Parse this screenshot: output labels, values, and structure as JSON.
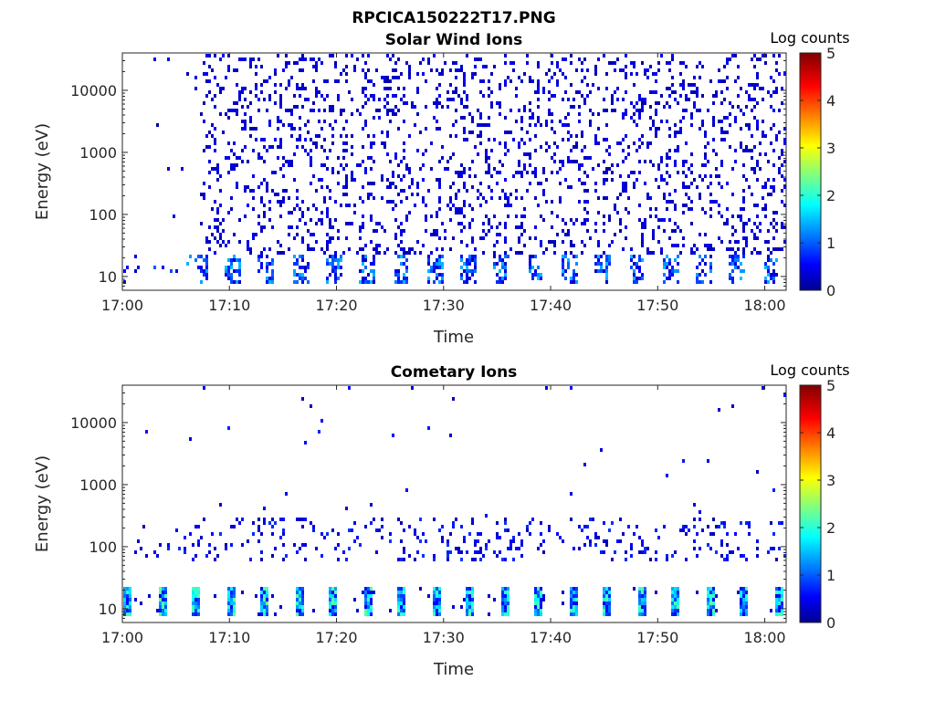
{
  "figure": {
    "title": "RPCICA150222T17.PNG"
  },
  "colors": {
    "axis": "#262626",
    "low": "#00008f",
    "high": "#800000"
  },
  "chart_data": [
    {
      "type": "heatmap",
      "title": "Solar Wind Ions",
      "xlabel": "Time",
      "ylabel": "Energy (eV)",
      "x_ticks": [
        "17:00",
        "17:10",
        "17:20",
        "17:30",
        "17:40",
        "17:50",
        "18:00"
      ],
      "y_ticks": [
        "10",
        "100",
        "1000",
        "10000"
      ],
      "y_scale": "log",
      "ylim": [
        6,
        40000
      ],
      "xlim_minutes": [
        0,
        62
      ],
      "colorbar": {
        "label": "Log counts",
        "ticks": [
          "0",
          "1",
          "2",
          "3",
          "4",
          "5"
        ],
        "range": [
          0,
          5
        ],
        "colormap": "jet"
      },
      "colorbar_colormap_stops": [
        "#00008f",
        "#0000ff",
        "#00ffff",
        "#ffff00",
        "#ff0000",
        "#800000"
      ],
      "description_levels": {
        "low_energy_band_eV": [
          8,
          25
        ],
        "low_energy_band_log_counts": [
          0.3,
          1.6
        ],
        "sparse_high_energy_log_counts": [
          0.2,
          0.6
        ],
        "activity_onset_minute": 7
      }
    },
    {
      "type": "heatmap",
      "title": "Cometary Ions",
      "xlabel": "Time",
      "ylabel": "Energy (eV)",
      "x_ticks": [
        "17:00",
        "17:10",
        "17:20",
        "17:30",
        "17:40",
        "17:50",
        "18:00"
      ],
      "y_ticks": [
        "10",
        "100",
        "1000",
        "10000"
      ],
      "y_scale": "log",
      "ylim": [
        6,
        40000
      ],
      "xlim_minutes": [
        0,
        62
      ],
      "colorbar": {
        "label": "Log counts",
        "ticks": [
          "0",
          "1",
          "2",
          "3",
          "4",
          "5"
        ],
        "range": [
          0,
          5
        ],
        "colormap": "jet"
      },
      "colorbar_colormap_stops": [
        "#00008f",
        "#0000ff",
        "#00ffff",
        "#ffff00",
        "#ff0000",
        "#800000"
      ],
      "description_levels": {
        "burst_band_eV": [
          8,
          25
        ],
        "burst_band_log_counts": [
          0.5,
          2.4
        ],
        "mid_energy_band_eV": [
          60,
          300
        ],
        "burst_period_minutes": 3.2
      }
    }
  ]
}
